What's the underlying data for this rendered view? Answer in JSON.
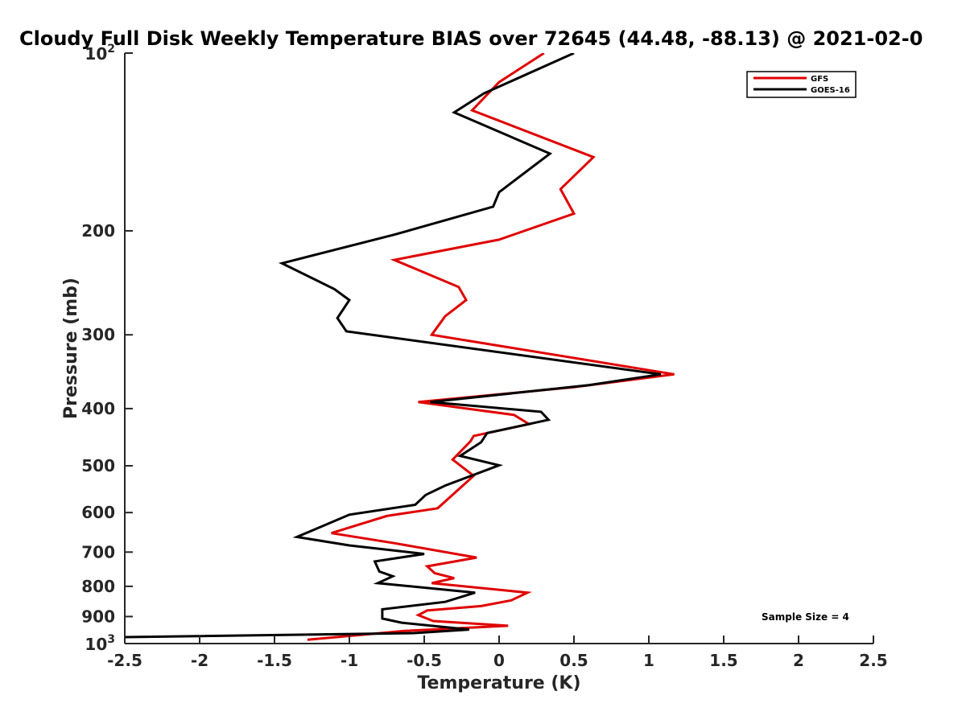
{
  "chart_data": {
    "type": "line",
    "title": "Cloudy Full Disk Weekly Temperature BIAS over 72645 (44.48, -88.13) @ 2021-02-0",
    "xlabel": "Temperature (K)",
    "ylabel": "Pressure (mb)",
    "xlim": [
      -2.5,
      2.5
    ],
    "ylim": [
      100,
      1000
    ],
    "y_scale": "log",
    "y_reversed": true,
    "grid": false,
    "legend_position": "top-right",
    "x_ticks": [
      -2.5,
      -2,
      -1.5,
      -1,
      -0.5,
      0,
      0.5,
      1,
      1.5,
      2,
      2.5
    ],
    "x_tick_labels": [
      "-2.5",
      "-2",
      "-1.5",
      "-1",
      "-0.5",
      "0",
      "0.5",
      "1",
      "1.5",
      "2",
      "2.5"
    ],
    "y_ticks": [
      200,
      300,
      400,
      500,
      600,
      700,
      800,
      900
    ],
    "y_tick_labels": [
      "200",
      "300",
      "400",
      "500",
      "600",
      "700",
      "800",
      "900"
    ],
    "y_endpoint_labels": [
      {
        "value": 100,
        "base": "10",
        "exp": "2"
      },
      {
        "value": 1000,
        "base": "10",
        "exp": "3"
      }
    ],
    "annotation": "Sample Size = 4",
    "series": [
      {
        "name": "GFS",
        "color": "#e00000",
        "points": [
          [
            0.3,
            100
          ],
          [
            0.0,
            112
          ],
          [
            -0.18,
            125
          ],
          [
            0.63,
            150
          ],
          [
            0.41,
            170
          ],
          [
            0.5,
            187
          ],
          [
            0.0,
            207
          ],
          [
            -0.7,
            224
          ],
          [
            -0.27,
            249
          ],
          [
            -0.22,
            262
          ],
          [
            -0.36,
            279
          ],
          [
            -0.45,
            300
          ],
          [
            1.17,
            350
          ],
          [
            0.5,
            368
          ],
          [
            -0.54,
            390
          ],
          [
            0.1,
            410
          ],
          [
            0.2,
            425
          ],
          [
            -0.17,
            445
          ],
          [
            -0.19,
            454
          ],
          [
            -0.31,
            488
          ],
          [
            -0.17,
            520
          ],
          [
            -0.41,
            590
          ],
          [
            -0.75,
            608
          ],
          [
            -1.12,
            650
          ],
          [
            -0.7,
            676
          ],
          [
            -0.15,
            715
          ],
          [
            -0.48,
            740
          ],
          [
            -0.43,
            760
          ],
          [
            -0.3,
            775
          ],
          [
            -0.45,
            790
          ],
          [
            0.19,
            820
          ],
          [
            0.08,
            845
          ],
          [
            -0.12,
            864
          ],
          [
            -0.48,
            879
          ],
          [
            -0.54,
            895
          ],
          [
            -0.44,
            916
          ],
          [
            0.06,
            933
          ],
          [
            -0.63,
            952
          ],
          [
            -1.28,
            985
          ]
        ]
      },
      {
        "name": "GOES-16",
        "color": "#000000",
        "points": [
          [
            0.5,
            100
          ],
          [
            -0.1,
            117
          ],
          [
            -0.3,
            126
          ],
          [
            0.34,
            148
          ],
          [
            0.0,
            172
          ],
          [
            -0.04,
            182
          ],
          [
            -0.7,
            203
          ],
          [
            -1.45,
            227
          ],
          [
            -1.1,
            251
          ],
          [
            -1.0,
            262
          ],
          [
            -1.08,
            281
          ],
          [
            -1.02,
            296
          ],
          [
            1.08,
            350
          ],
          [
            0.6,
            365
          ],
          [
            -0.46,
            390
          ],
          [
            0.28,
            405
          ],
          [
            0.33,
            418
          ],
          [
            -0.08,
            440
          ],
          [
            -0.12,
            456
          ],
          [
            -0.26,
            481
          ],
          [
            0.0,
            499
          ],
          [
            -0.36,
            540
          ],
          [
            -0.49,
            560
          ],
          [
            -0.56,
            582
          ],
          [
            -1.0,
            605
          ],
          [
            -1.35,
            660
          ],
          [
            -1.0,
            682
          ],
          [
            -0.5,
            705
          ],
          [
            -0.83,
            726
          ],
          [
            -0.8,
            755
          ],
          [
            -0.71,
            769
          ],
          [
            -0.81,
            790
          ],
          [
            -0.16,
            820
          ],
          [
            -0.36,
            850
          ],
          [
            -0.78,
            875
          ],
          [
            -0.78,
            907
          ],
          [
            -0.65,
            922
          ],
          [
            -0.2,
            947
          ],
          [
            -0.57,
            960
          ],
          [
            -2.6,
            976
          ]
        ]
      }
    ]
  }
}
